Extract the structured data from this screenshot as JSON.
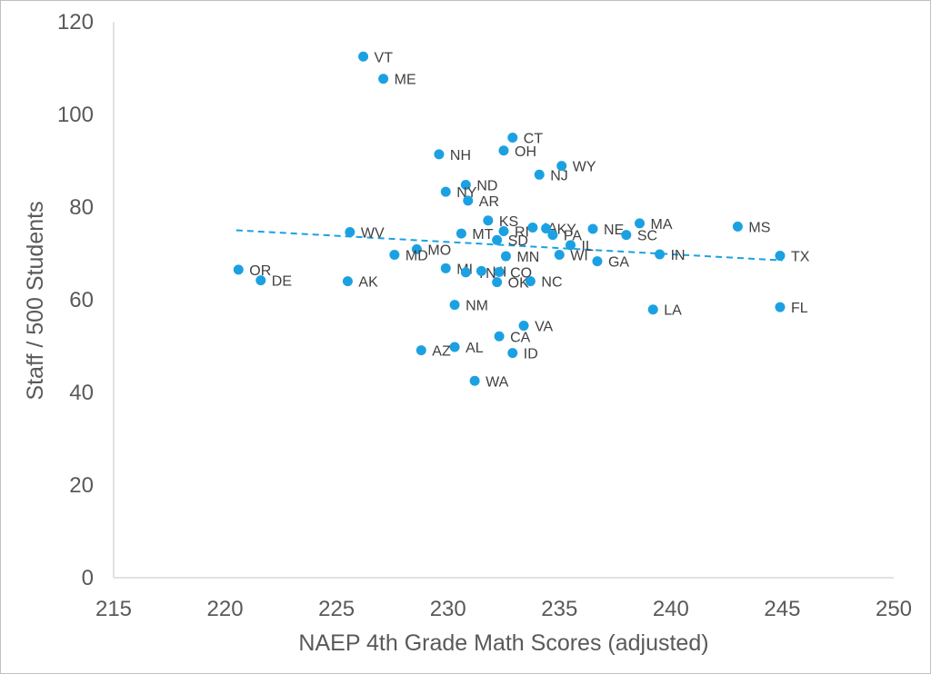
{
  "chart_data": {
    "type": "scatter",
    "title": "",
    "xlabel": "NAEP 4th Grade Math Scores (adjusted)",
    "ylabel": "Staff / 500 Students",
    "xlim": [
      215,
      250
    ],
    "ylim": [
      0,
      120
    ],
    "xticks": [
      215,
      220,
      225,
      230,
      235,
      240,
      245,
      250
    ],
    "yticks": [
      0,
      20,
      40,
      60,
      80,
      100,
      120
    ],
    "grid": false,
    "legend": "none",
    "marker_color": "#1ba1e2",
    "trendline": {
      "type": "linear",
      "style": "dashed",
      "color": "#1ba1e2",
      "x": [
        220.5,
        245
      ],
      "y": [
        75,
        68.5
      ]
    },
    "points": [
      {
        "label": "VT",
        "x": 226.2,
        "y": 112.5
      },
      {
        "label": "ME",
        "x": 227.1,
        "y": 107.7
      },
      {
        "label": "CT",
        "x": 232.9,
        "y": 95.0
      },
      {
        "label": "OH",
        "x": 232.5,
        "y": 92.2
      },
      {
        "label": "NH",
        "x": 229.6,
        "y": 91.4
      },
      {
        "label": "WY",
        "x": 235.1,
        "y": 88.9
      },
      {
        "label": "NJ",
        "x": 234.1,
        "y": 87.0
      },
      {
        "label": "ND",
        "x": 230.8,
        "y": 84.8
      },
      {
        "label": "NY",
        "x": 229.9,
        "y": 83.3
      },
      {
        "label": "AR",
        "x": 230.9,
        "y": 81.4
      },
      {
        "label": "KS",
        "x": 231.8,
        "y": 77.1
      },
      {
        "label": "MA",
        "x": 238.6,
        "y": 76.5
      },
      {
        "label": "MS",
        "x": 243.0,
        "y": 75.8
      },
      {
        "label": "RI",
        "x": 232.5,
        "y": 74.8
      },
      {
        "label": "IA",
        "x": 233.8,
        "y": 75.6
      },
      {
        "label": "KY",
        "x": 234.4,
        "y": 75.4
      },
      {
        "label": "NE",
        "x": 236.5,
        "y": 75.3
      },
      {
        "label": "WV",
        "x": 225.6,
        "y": 74.6
      },
      {
        "label": "MT",
        "x": 230.6,
        "y": 74.3
      },
      {
        "label": "PA",
        "x": 234.7,
        "y": 74.0
      },
      {
        "label": "SC",
        "x": 238.0,
        "y": 74.0
      },
      {
        "label": "SD",
        "x": 232.2,
        "y": 72.9
      },
      {
        "label": "IL",
        "x": 235.5,
        "y": 71.8
      },
      {
        "label": "MO",
        "x": 228.6,
        "y": 70.9
      },
      {
        "label": "MD",
        "x": 227.6,
        "y": 69.7
      },
      {
        "label": "MN",
        "x": 232.6,
        "y": 69.4
      },
      {
        "label": "WI",
        "x": 235.0,
        "y": 69.7
      },
      {
        "label": "IN",
        "x": 239.5,
        "y": 69.8
      },
      {
        "label": "TX",
        "x": 244.9,
        "y": 69.5
      },
      {
        "label": "GA",
        "x": 236.7,
        "y": 68.3
      },
      {
        "label": "OR",
        "x": 220.6,
        "y": 66.5
      },
      {
        "label": "MI",
        "x": 229.9,
        "y": 66.8
      },
      {
        "label": "TN",
        "x": 230.8,
        "y": 65.9
      },
      {
        "label": "HI",
        "x": 231.5,
        "y": 66.2
      },
      {
        "label": "CO",
        "x": 232.3,
        "y": 66.0
      },
      {
        "label": "DE",
        "x": 221.6,
        "y": 64.2
      },
      {
        "label": "AK",
        "x": 225.5,
        "y": 64.0
      },
      {
        "label": "OK",
        "x": 232.2,
        "y": 63.8
      },
      {
        "label": "NC",
        "x": 233.7,
        "y": 64.0
      },
      {
        "label": "NM",
        "x": 230.3,
        "y": 58.9
      },
      {
        "label": "LA",
        "x": 239.2,
        "y": 57.9
      },
      {
        "label": "FL",
        "x": 244.9,
        "y": 58.4
      },
      {
        "label": "VA",
        "x": 233.4,
        "y": 54.4
      },
      {
        "label": "CA",
        "x": 232.3,
        "y": 52.1
      },
      {
        "label": "AL",
        "x": 230.3,
        "y": 49.8
      },
      {
        "label": "AZ",
        "x": 228.8,
        "y": 49.1
      },
      {
        "label": "ID",
        "x": 232.9,
        "y": 48.5
      },
      {
        "label": "WA",
        "x": 231.2,
        "y": 42.5
      }
    ]
  }
}
